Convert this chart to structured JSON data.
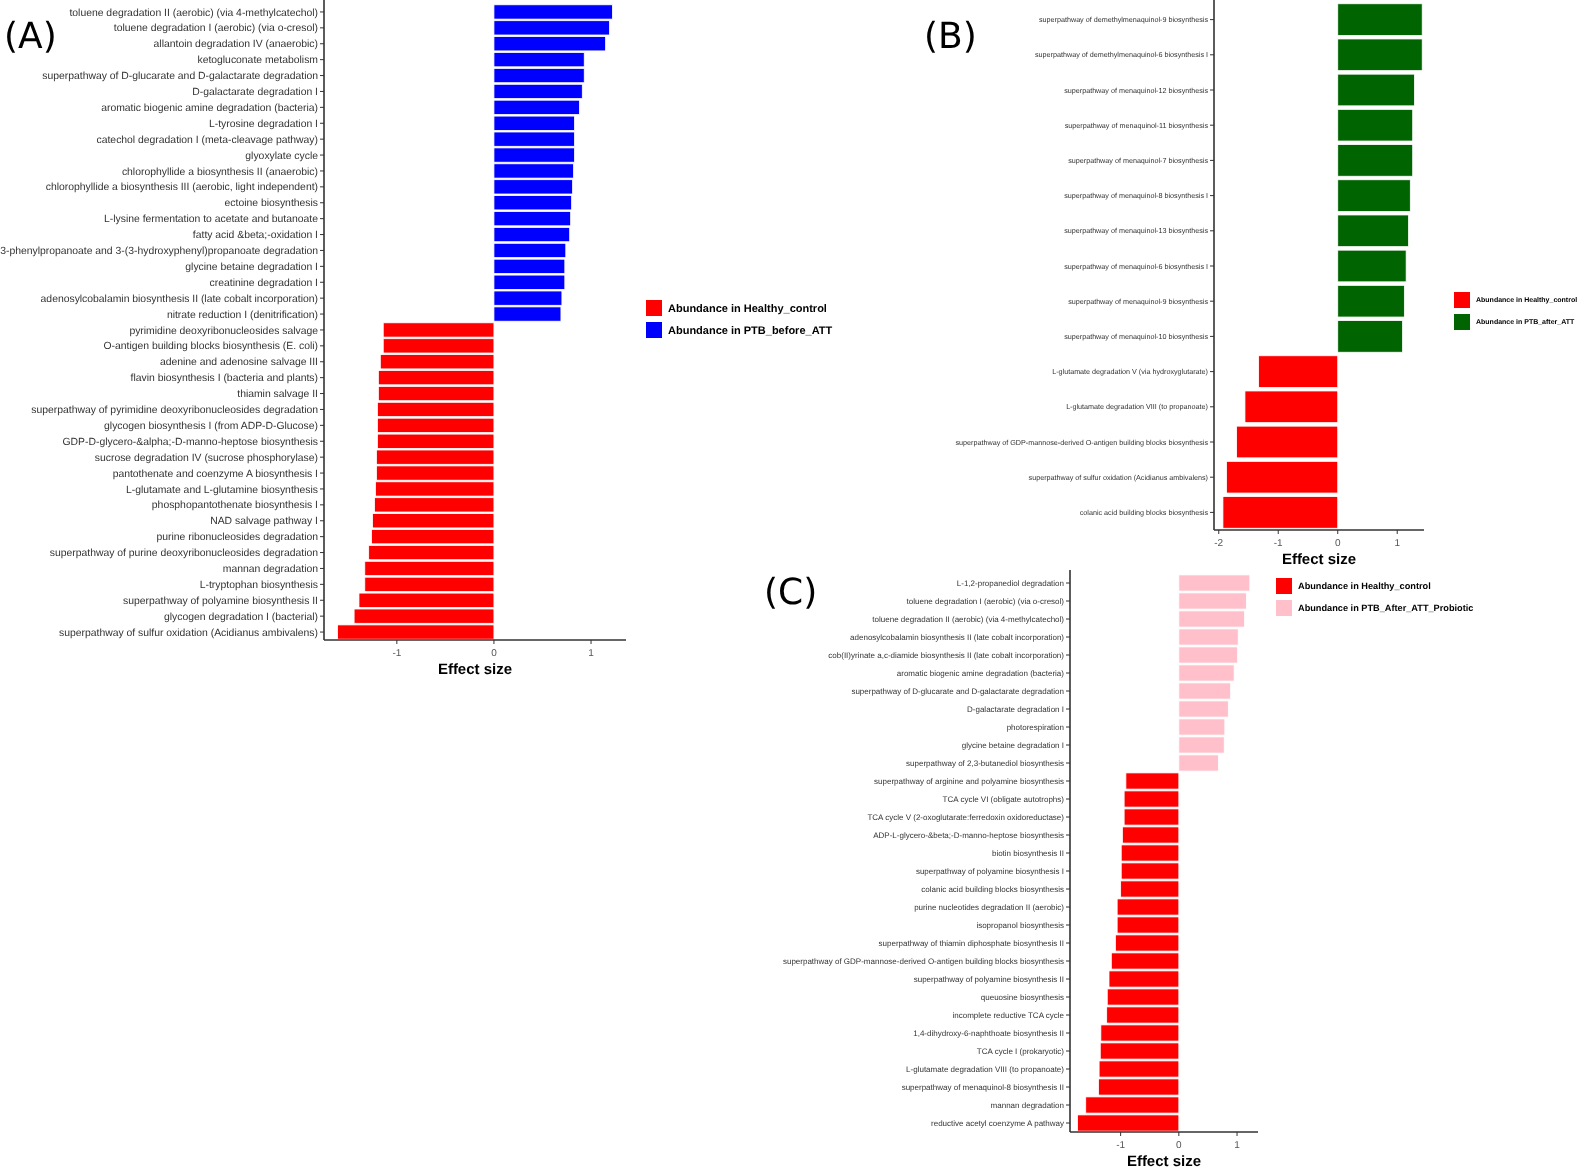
{
  "chart_data": [
    {
      "type": "bar",
      "title": "(A)",
      "orientation": "horizontal",
      "xlabel": "Effect size",
      "xlim": [
        -1.75,
        1.36
      ],
      "xticks": [
        -1,
        0,
        1
      ],
      "legend": "right",
      "categories": [
        "toluene degradation II (aerobic) (via 4-methylcatechol)",
        "toluene degradation I (aerobic) (via o-cresol)",
        "allantoin degradation IV (anaerobic)",
        "ketogluconate metabolism",
        "superpathway of D-glucarate and D-galactarate degradation",
        "D-galactarate degradation I",
        "aromatic biogenic amine degradation (bacteria)",
        "L-tyrosine degradation I",
        "catechol degradation I (meta-cleavage pathway)",
        "glyoxylate cycle",
        "chlorophyllide a biosynthesis II (anaerobic)",
        "chlorophyllide a biosynthesis III (aerobic, light independent)",
        "ectoine biosynthesis",
        "L-lysine fermentation to acetate and butanoate",
        "fatty acid &beta;-oxidation I",
        "3-phenylpropanoate and 3-(3-hydroxyphenyl)propanoate degradation",
        "glycine betaine degradation I",
        "creatinine degradation I",
        "adenosylcobalamin biosynthesis II (late cobalt incorporation)",
        "nitrate reduction I (denitrification)",
        "pyrimidine deoxyribonucleosides salvage",
        "O-antigen building blocks biosynthesis (E. coli)",
        "adenine and adenosine salvage III",
        "flavin biosynthesis I (bacteria and plants)",
        "thiamin salvage II",
        "superpathway of pyrimidine deoxyribonucleosides degradation",
        "glycogen biosynthesis I (from ADP-D-Glucose)",
        "GDP-D-glycero-&alpha;-D-manno-heptose biosynthesis",
        "sucrose degradation IV (sucrose phosphorylase)",
        "pantothenate and coenzyme A biosynthesis I",
        "L-glutamate and L-glutamine biosynthesis",
        "phosphopantothenate biosynthesis I",
        "NAD salvage pathway I",
        "purine ribonucleosides degradation",
        "superpathway of purine deoxyribonucleosides degradation",
        "mannan degradation",
        "L-tryptophan biosynthesis",
        "superpathway of polyamine biosynthesis II",
        "glycogen degradation I (bacterial)",
        "superpathway of sulfur oxidation (Acidianus ambivalens)"
      ],
      "series": [
        {
          "name": "Abundance in Healthy_control",
          "color": "#ff0000",
          "values": [
            null,
            null,
            null,
            null,
            null,
            null,
            null,
            null,
            null,
            null,
            null,
            null,
            null,
            null,
            null,
            null,
            null,
            null,
            null,
            null,
            -1.14,
            -1.14,
            -1.17,
            -1.19,
            -1.19,
            -1.2,
            -1.2,
            -1.2,
            -1.21,
            -1.21,
            -1.22,
            -1.23,
            -1.25,
            -1.26,
            -1.29,
            -1.33,
            -1.33,
            -1.39,
            -1.44,
            -1.61
          ]
        },
        {
          "name": "Abundance in PTB_before_ATT",
          "color": "#0000ff",
          "values": [
            1.22,
            1.19,
            1.15,
            0.93,
            0.93,
            0.91,
            0.88,
            0.83,
            0.83,
            0.83,
            0.82,
            0.81,
            0.8,
            0.79,
            0.78,
            0.74,
            0.73,
            0.73,
            0.7,
            0.69,
            null,
            null,
            null,
            null,
            null,
            null,
            null,
            null,
            null,
            null,
            null,
            null,
            null,
            null,
            null,
            null,
            null,
            null,
            null,
            null
          ]
        }
      ]
    },
    {
      "type": "bar",
      "title": "(B)",
      "orientation": "horizontal",
      "xlabel": "Effect size",
      "xlim": [
        -2.08,
        1.45
      ],
      "xticks": [
        -2,
        -1,
        0,
        1
      ],
      "legend": "right",
      "categories": [
        "superpathway of demethylmenaquinol-9 biosynthesis",
        "superpathway of demethylmenaquinol-6 biosynthesis I",
        "superpathway of menaquinol-12 biosynthesis",
        "superpathway of menaquinol-11 biosynthesis",
        "superpathway of menaquinol-7 biosynthesis",
        "superpathway of menaquinol-8 biosynthesis I",
        "superpathway of menaquinol-13 biosynthesis",
        "superpathway of menaquinol-6 biosynthesis I",
        "superpathway of menaquinol-9 biosynthesis",
        "superpathway of menaquinol-10 biosynthesis",
        "L-glutamate degradation V (via hydroxyglutarate)",
        "L-glutamate degradation VIII (to propanoate)",
        "superpathway of GDP-mannose-derived O-antigen building blocks biosynthesis",
        "superpathway of sulfur oxidation (Acidianus ambivalens)",
        "colanic acid building blocks biosynthesis"
      ],
      "series": [
        {
          "name": "Abundance in Healthy_control",
          "color": "#ff0000",
          "values": [
            null,
            null,
            null,
            null,
            null,
            null,
            null,
            null,
            null,
            null,
            -1.33,
            -1.56,
            -1.7,
            -1.87,
            -1.93
          ]
        },
        {
          "name": "Abundance in PTB_after_ATT",
          "color": "#006400",
          "values": [
            1.42,
            1.42,
            1.29,
            1.26,
            1.26,
            1.22,
            1.19,
            1.15,
            1.12,
            1.09,
            null,
            null,
            null,
            null,
            null
          ]
        }
      ]
    },
    {
      "type": "bar",
      "title": "(C)",
      "orientation": "horizontal",
      "xlabel": "Effect size",
      "xlim": [
        -1.87,
        1.36
      ],
      "xticks": [
        -1,
        0,
        1
      ],
      "legend": "right",
      "categories": [
        "L-1,2-propanediol degradation",
        "toluene degradation I (aerobic) (via o-cresol)",
        "toluene degradation II (aerobic) (via 4-methylcatechol)",
        "adenosylcobalamin biosynthesis II (late cobalt incorporation)",
        "cob(II)yrinate a,c-diamide biosynthesis II (late cobalt incorporation)",
        "aromatic biogenic amine degradation (bacteria)",
        "superpathway of D-glucarate and D-galactarate degradation",
        "D-galactarate degradation I",
        "photorespiration",
        "glycine betaine degradation I",
        "superpathway of 2,3-butanediol biosynthesis",
        "superpathway of arginine and polyamine biosynthesis",
        "TCA cycle VI (obligate autotrophs)",
        "TCA cycle V (2-oxoglutarate:ferredoxin oxidoreductase)",
        "ADP-L-glycero-&beta;-D-manno-heptose biosynthesis",
        "biotin biosynthesis II",
        "superpathway of polyamine biosynthesis I",
        "colanic acid building blocks biosynthesis",
        "purine nucleotides degradation II (aerobic)",
        "isopropanol biosynthesis",
        "superpathway of thiamin diphosphate biosynthesis II",
        "superpathway of GDP-mannose-derived O-antigen building blocks biosynthesis",
        "superpathway of polyamine biosynthesis II",
        "queuosine biosynthesis",
        "incomplete reductive TCA cycle",
        "1,4-dihydroxy-6-naphthoate biosynthesis II",
        "TCA cycle I (prokaryotic)",
        "L-glutamate degradation VIII (to propanoate)",
        "superpathway of menaquinol-8 biosynthesis II",
        "mannan degradation",
        "reductive acetyl coenzyme A pathway"
      ],
      "series": [
        {
          "name": "Abundance in Healthy_control",
          "color": "#ff0000",
          "values": [
            null,
            null,
            null,
            null,
            null,
            null,
            null,
            null,
            null,
            null,
            null,
            -0.91,
            -0.94,
            -0.94,
            -0.97,
            -0.99,
            -0.99,
            -1.0,
            -1.06,
            -1.06,
            -1.09,
            -1.16,
            -1.2,
            -1.23,
            -1.24,
            -1.34,
            -1.35,
            -1.37,
            -1.38,
            -1.6,
            -1.74
          ]
        },
        {
          "name": "Abundance in PTB_After_ATT_Probiotic",
          "color": "#ffc0cb",
          "values": [
            1.22,
            1.16,
            1.13,
            1.02,
            1.01,
            0.95,
            0.89,
            0.85,
            0.79,
            0.78,
            0.68,
            null,
            null,
            null,
            null,
            null,
            null,
            null,
            null,
            null,
            null,
            null,
            null,
            null,
            null,
            null,
            null,
            null,
            null,
            null,
            null
          ]
        }
      ]
    }
  ]
}
